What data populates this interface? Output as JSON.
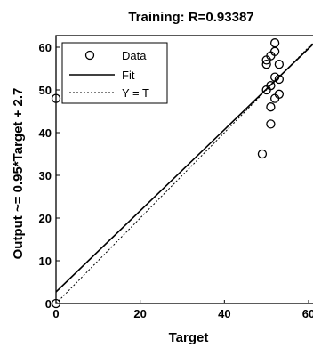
{
  "chart_data": {
    "type": "scatter",
    "title": "Training: R=0.93387",
    "xlabel": "Target",
    "ylabel": "Output ~= 0.95*Target + 2.7",
    "xlim": [
      0,
      60
    ],
    "ylim": [
      0,
      63
    ],
    "xticks": [
      "0",
      "20",
      "40",
      "60"
    ],
    "yticks": [
      "0",
      "10",
      "20",
      "30",
      "40",
      "50",
      "60"
    ],
    "legend_position": "top-left",
    "series": [
      {
        "name": "Data",
        "marker": "open-circle",
        "color": "#000000",
        "points": [
          [
            0,
            0
          ],
          [
            0,
            48
          ],
          [
            49,
            35
          ],
          [
            50,
            50
          ],
          [
            50,
            56
          ],
          [
            50,
            57
          ],
          [
            51,
            42
          ],
          [
            51,
            46
          ],
          [
            51,
            51
          ],
          [
            51,
            58
          ],
          [
            52,
            48
          ],
          [
            52,
            53
          ],
          [
            52,
            59
          ],
          [
            52,
            61
          ],
          [
            53,
            49
          ],
          [
            53,
            56
          ],
          [
            53,
            52.5
          ]
        ]
      },
      {
        "name": "Fit",
        "style": "solid",
        "color": "#000000",
        "slope": 0.95,
        "intercept": 2.7
      },
      {
        "name": "Y = T",
        "style": "dotted",
        "color": "#000000",
        "slope": 1,
        "intercept": 0
      }
    ]
  }
}
